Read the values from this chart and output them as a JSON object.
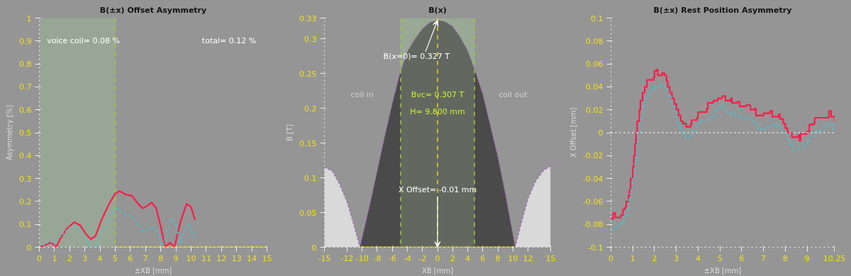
{
  "chart_data": [
    {
      "type": "line",
      "title": "B(±x) Offset Asymmetry",
      "xlabel": "±XB [mm]",
      "ylabel": "Asymmetry [%]",
      "xlim": [
        0,
        15
      ],
      "xticks": [
        0,
        1,
        2,
        3,
        4,
        5,
        6,
        7,
        8,
        9,
        10,
        11,
        12,
        13,
        14,
        15
      ],
      "ylim": [
        0,
        1
      ],
      "yticks": [
        0,
        0.1,
        0.2,
        0.3,
        0.4,
        0.5,
        0.6,
        0.7,
        0.8,
        0.9,
        1
      ],
      "bands": [
        {
          "axis": "x",
          "from": 0,
          "to": 5,
          "color": "#9aae96"
        }
      ],
      "ref_lines": [
        {
          "axis": "x",
          "value": 5,
          "color": "#9acd32",
          "line_style": "dashed"
        }
      ],
      "annotations": [
        "voice coil= 0.08 %",
        "total= 0.12 %"
      ],
      "series": [
        {
          "color": "#ff1a4a",
          "line_style": "solid",
          "x": [
            0,
            0.4,
            0.7,
            0.9,
            1.1,
            1.4,
            1.8,
            2.3,
            2.7,
            3.1,
            3.4,
            3.7,
            4.1,
            4.6,
            5.0,
            5.3,
            5.7,
            6.1,
            6.5,
            6.8,
            7.1,
            7.4,
            7.7,
            8.0,
            8.3,
            8.6,
            8.9,
            9.3,
            9.7,
            10.0,
            10.25
          ],
          "values": [
            0,
            0.01,
            0.02,
            0.015,
            0,
            0.04,
            0.08,
            0.11,
            0.095,
            0.055,
            0.035,
            0.05,
            0.12,
            0.19,
            0.235,
            0.245,
            0.23,
            0.225,
            0.19,
            0.17,
            0.18,
            0.195,
            0.17,
            0.09,
            0,
            0.02,
            0,
            0.11,
            0.19,
            0.175,
            0.12
          ]
        },
        {
          "color": "#40c8e0",
          "line_style": "dotted",
          "x": [
            0,
            0.7,
            1.0,
            1.4,
            2.0,
            2.5,
            3.0,
            3.4,
            3.7,
            4.1,
            4.6,
            5.0,
            5.5,
            6.1,
            6.5,
            6.9,
            7.2,
            7.5,
            7.8,
            8.1,
            8.4,
            8.7,
            9.0,
            9.3,
            9.6,
            9.9,
            10.25
          ],
          "values": [
            0,
            0.025,
            0.015,
            0.05,
            0.085,
            0.09,
            0.04,
            0,
            0,
            0.06,
            0.13,
            0.175,
            0.15,
            0.135,
            0.1,
            0.07,
            0.08,
            0.09,
            0.07,
            0,
            0.06,
            0.125,
            0.1,
            0.015,
            0.08,
            0.1,
            0.03
          ]
        },
        {
          "color": "#e8e000",
          "line_style": "solid",
          "x": [
            5,
            15
          ],
          "values": [
            0,
            0
          ]
        }
      ]
    },
    {
      "type": "area",
      "title": "B(x)",
      "xlabel": "XB [mm]",
      "ylabel": "B [T]",
      "xlim": [
        -15,
        15
      ],
      "xticks": [
        -15,
        -12,
        -10,
        -8,
        -6,
        -4,
        -2,
        0,
        2,
        4,
        6,
        8,
        10,
        12,
        15
      ],
      "ylim": [
        0,
        0.33
      ],
      "yticks": [
        0,
        0.05,
        0.1,
        0.15,
        0.2,
        0.25,
        0.3,
        0.33
      ],
      "bands": [
        {
          "axis": "x",
          "from": -4.9,
          "to": 4.9,
          "color": "#9aae96"
        }
      ],
      "ref_lines": [
        {
          "axis": "x",
          "value": -4.9,
          "color": "#9acd32",
          "line_style": "dashed"
        },
        {
          "axis": "x",
          "value": 4.9,
          "color": "#9acd32",
          "line_style": "dashed"
        },
        {
          "axis": "x",
          "value": 0,
          "color": "#f0d020",
          "line_style": "dashed"
        }
      ],
      "annotations": [
        {
          "text": "B(x=0)= 0.327 T",
          "x": 0,
          "y": 0.327
        },
        "coil in",
        "Bvc= 0.307 T",
        "H= 9.800 mm",
        "coil out",
        {
          "text": "X Offset= -0.01 mm",
          "x": -0.01,
          "y": 0
        }
      ],
      "series": [
        {
          "color": "#d9d9d9",
          "line_style": "dotted",
          "x": [
            -15,
            -14,
            -13,
            -12,
            -11,
            -10.3
          ],
          "values": [
            0.115,
            0.11,
            0.091,
            0.065,
            0.028,
            0
          ]
        },
        {
          "color": "#4a4a4a",
          "line_style": "dotted",
          "x": [
            -10.3,
            -9,
            -8,
            -7,
            -6,
            -5,
            -4,
            -3,
            -2,
            -1,
            0,
            1,
            2,
            3,
            4,
            5,
            6,
            7,
            8,
            9,
            10.3
          ],
          "values": [
            0,
            0.06,
            0.11,
            0.16,
            0.207,
            0.25,
            0.282,
            0.3,
            0.315,
            0.324,
            0.327,
            0.325,
            0.318,
            0.303,
            0.283,
            0.254,
            0.22,
            0.175,
            0.13,
            0.076,
            0
          ]
        },
        {
          "color": "#d9d9d9",
          "line_style": "dotted",
          "x": [
            10.3,
            11,
            12,
            13,
            14,
            15
          ],
          "values": [
            0,
            0.03,
            0.07,
            0.095,
            0.11,
            0.117
          ]
        },
        {
          "type": "line",
          "color": "#e8e000",
          "line_style": "solid",
          "x": [
            -10.3,
            10.3
          ],
          "values": [
            0,
            0
          ]
        }
      ]
    },
    {
      "type": "step",
      "title": "B(±x) Rest Position Asymmetry",
      "xlabel": "±XB [mm]",
      "ylabel": "X Offset [mm]",
      "xlim": [
        0,
        10.25
      ],
      "xticks": [
        0,
        1,
        2,
        3,
        4,
        5,
        6,
        7,
        8,
        9,
        10.25
      ],
      "ylim": [
        -0.1,
        0.1
      ],
      "yticks": [
        -0.1,
        -0.08,
        -0.06,
        -0.04,
        -0.02,
        0,
        0.02,
        0.04,
        0.06,
        0.08,
        0.1
      ],
      "ref_lines": [
        {
          "axis": "y",
          "value": 0,
          "color": "#eeeeee",
          "line_style": "dotted"
        }
      ],
      "series": [
        {
          "color": "#ff1a4a",
          "line_style": "solid",
          "x": [
            0,
            0.1,
            0.2,
            0.45,
            0.55,
            0.65,
            0.7,
            0.8,
            0.85,
            0.9,
            1.0,
            1.05,
            1.1,
            1.15,
            1.2,
            1.3,
            1.35,
            1.45,
            1.55,
            1.65,
            1.95,
            2.0,
            2.1,
            2.15,
            2.35,
            2.45,
            2.55,
            2.6,
            2.7,
            2.8,
            2.9,
            3.0,
            3.1,
            3.2,
            3.3,
            3.45,
            3.65,
            3.7,
            3.95,
            4.0,
            4.4,
            4.45,
            4.7,
            4.9,
            5.1,
            5.25,
            5.5,
            5.55,
            5.8,
            5.9,
            6.2,
            6.4,
            6.6,
            6.65,
            7.0,
            7.3,
            7.4,
            7.7,
            7.75,
            7.9,
            8.0,
            8.1,
            8.3,
            8.6,
            8.65,
            8.7,
            9.0,
            9.1,
            9.3,
            9.35,
            10.0,
            10.1,
            10.2,
            10.25
          ],
          "values": [
            -0.075,
            -0.07,
            -0.074,
            -0.072,
            -0.067,
            -0.065,
            -0.06,
            -0.055,
            -0.05,
            -0.04,
            -0.03,
            -0.02,
            -0.01,
            0,
            0.01,
            0.02,
            0.028,
            0.035,
            0.04,
            0.046,
            0.048,
            0.054,
            0.055,
            0.05,
            0.052,
            0.05,
            0.045,
            0.04,
            0.035,
            0.03,
            0.025,
            0.02,
            0.015,
            0.01,
            0.008,
            0.005,
            0.007,
            0.011,
            0.013,
            0.018,
            0.021,
            0.026,
            0.028,
            0.03,
            0.032,
            0.028,
            0.03,
            0.026,
            0.027,
            0.023,
            0.024,
            0.02,
            0.021,
            0.015,
            0.017,
            0.019,
            0.014,
            0.016,
            0.012,
            0.008,
            0.004,
            0,
            -0.004,
            -0.002,
            -0.007,
            -0.001,
            0.001,
            0.007,
            0.008,
            0.013,
            0.019,
            0.014,
            0.014,
            0.01
          ]
        },
        {
          "color": "#40c8e0",
          "line_style": "dotted",
          "x": [
            0,
            0.15,
            0.4,
            0.5,
            0.6,
            0.7,
            0.8,
            0.9,
            1.0,
            1.1,
            1.2,
            1.25,
            1.35,
            1.45,
            1.55,
            1.7,
            1.85,
            2.0,
            2.3,
            2.45,
            2.6,
            2.75,
            2.9,
            3.0,
            3.15,
            3.3,
            3.4,
            3.6,
            3.75,
            3.9,
            4.0,
            4.2,
            4.5,
            4.65,
            4.8,
            5.0,
            5.2,
            5.35,
            5.6,
            5.7,
            6.0,
            6.2,
            6.4,
            6.6,
            6.75,
            7.2,
            7.5,
            7.7,
            7.8,
            7.95,
            8.1,
            8.2,
            8.35,
            8.6,
            8.9,
            9.0,
            9.1,
            9.3,
            9.5,
            9.8,
            10.1,
            10.2,
            10.25
          ],
          "values": [
            -0.085,
            -0.082,
            -0.08,
            -0.078,
            -0.072,
            -0.066,
            -0.058,
            -0.05,
            -0.038,
            -0.025,
            -0.01,
            0,
            0.012,
            0.022,
            0.03,
            0.035,
            0.038,
            0.04,
            0.042,
            0.038,
            0.032,
            0.025,
            0.018,
            0.01,
            0.003,
            0,
            -0.004,
            -0.002,
            0.002,
            0.005,
            0.009,
            0.011,
            0.012,
            0.015,
            0.02,
            0.024,
            0.02,
            0.017,
            0.018,
            0.015,
            0.012,
            0.013,
            0.01,
            0.008,
            0.003,
            0.006,
            0.008,
            0.005,
            0.002,
            -0.002,
            -0.006,
            -0.01,
            -0.015,
            -0.013,
            -0.011,
            -0.008,
            -0.003,
            0.001,
            0.002,
            0.006,
            0.008,
            0.003,
            0.004
          ]
        }
      ]
    }
  ]
}
